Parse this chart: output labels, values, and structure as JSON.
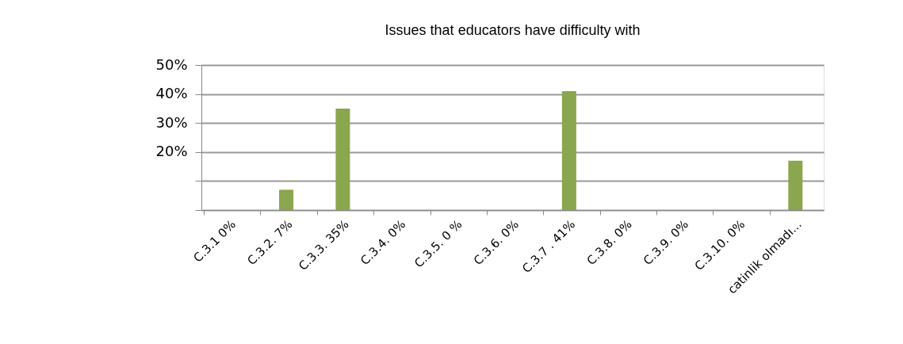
{
  "chart_data": {
    "type": "bar",
    "title": "Issues that educators have difficulty with",
    "categories": [
      "C.3.1      0%",
      "C.3.2.    7%",
      "C.3.3.   35%",
      "C.3.4.   0%",
      "C.3.5.   0 %",
      "C.3.6.    0%",
      "C.3.7 . 41%",
      "C.3.8.    0%",
      "C.3.9.    0%",
      "C.3.10.   0%",
      "catinlik olmadı..."
    ],
    "values": [
      0,
      7,
      35,
      0,
      0,
      0,
      41,
      0,
      0,
      0,
      17
    ],
    "color": "#8aa64e",
    "ylim": [
      0,
      50
    ],
    "yticks": [
      {
        "value": 0,
        "label": null
      },
      {
        "value": 10,
        "label": null
      },
      {
        "value": 20,
        "label": "20%"
      },
      {
        "value": 30,
        "label": "30%"
      },
      {
        "value": 40,
        "label": "40%"
      },
      {
        "value": 50,
        "label": "50%"
      }
    ],
    "grid": "y"
  }
}
